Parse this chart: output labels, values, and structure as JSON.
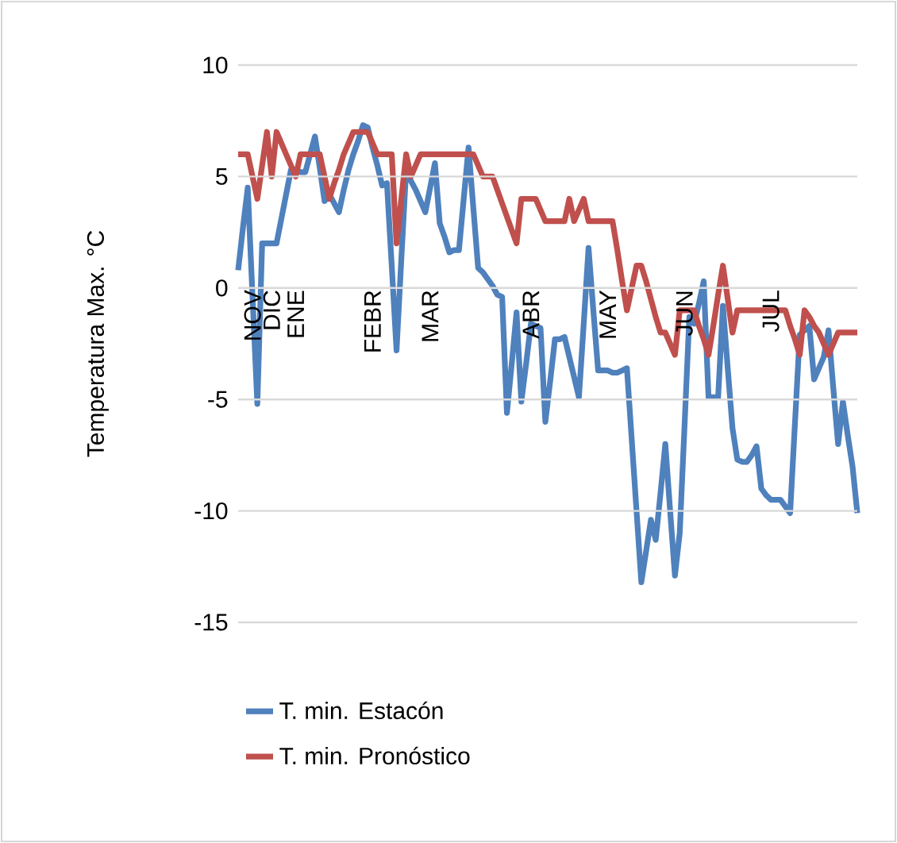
{
  "chart_data": {
    "type": "line",
    "ylabel": "Temperatura Max. °C",
    "categories": [
      null,
      null,
      null,
      "NOV",
      null,
      null,
      null,
      "DIC",
      null,
      null,
      null,
      null,
      "ENE",
      null,
      null,
      null,
      null,
      null,
      null,
      null,
      null,
      null,
      null,
      null,
      null,
      null,
      null,
      null,
      "FEBR",
      null,
      null,
      null,
      null,
      null,
      null,
      null,
      null,
      null,
      null,
      null,
      "MAR",
      null,
      null,
      null,
      null,
      null,
      null,
      null,
      null,
      null,
      null,
      null,
      null,
      null,
      null,
      null,
      null,
      null,
      null,
      null,
      null,
      "ABR",
      null,
      null,
      null,
      null,
      null,
      null,
      null,
      null,
      null,
      null,
      null,
      null,
      null,
      null,
      null,
      "MAY",
      null,
      null,
      null,
      null,
      null,
      null,
      null,
      null,
      null,
      null,
      null,
      null,
      null,
      null,
      null,
      "JUN",
      null,
      null,
      null,
      null,
      null,
      null,
      null,
      null,
      null,
      null,
      null,
      null,
      null,
      null,
      null,
      null,
      null,
      "JUL",
      null,
      null,
      null,
      null,
      null,
      null,
      null,
      null,
      null,
      null,
      null,
      null,
      null,
      null,
      null,
      null,
      null,
      null
    ],
    "ylim": [
      -15,
      10
    ],
    "yticks": [
      -15,
      -10,
      -5,
      0,
      5,
      10
    ],
    "grid": "y",
    "legend": "bottom",
    "line_style": "solid",
    "series": [
      {
        "name": "T. min. Estacón",
        "color": "#4f81bd",
        "values": [
          0.8,
          2.7,
          4.5,
          -0.4,
          -5.2,
          2.0,
          2.0,
          2.0,
          2.0,
          3.1,
          4.2,
          5.3,
          5.3,
          5.2,
          5.2,
          6.0,
          6.8,
          5.4,
          3.9,
          4.2,
          3.8,
          3.4,
          4.4,
          5.3,
          6.0,
          6.6,
          7.3,
          7.2,
          6.3,
          5.5,
          4.6,
          4.7,
          1.0,
          -2.8,
          1.3,
          5.3,
          4.8,
          4.4,
          3.9,
          3.4,
          4.5,
          5.6,
          2.9,
          2.3,
          1.6,
          1.7,
          1.7,
          4.0,
          6.3,
          3.6,
          0.9,
          0.7,
          0.4,
          0.1,
          -0.3,
          -0.4,
          -5.6,
          -3.4,
          -1.1,
          -5.1,
          -3.4,
          -1.6,
          -1.7,
          -1.8,
          -6.0,
          -4.2,
          -2.3,
          -2.3,
          -2.2,
          -3.1,
          -4.0,
          -4.9,
          -1.6,
          1.8,
          -1.0,
          -3.7,
          -3.7,
          -3.7,
          -3.8,
          -3.8,
          -3.7,
          -3.6,
          -6.8,
          -10.0,
          -13.2,
          -11.8,
          -10.4,
          -11.3,
          -9.2,
          -7.0,
          -10.0,
          -12.9,
          -11.0,
          -6.2,
          -1.3,
          -1.6,
          -0.7,
          0.3,
          -4.9,
          -4.9,
          -4.9,
          -0.8,
          -3.6,
          -6.3,
          -7.7,
          -7.8,
          -7.8,
          -7.5,
          -7.1,
          -9.0,
          -9.3,
          -9.5,
          -9.5,
          -9.5,
          -9.8,
          -10.1,
          -6.1,
          -2.1,
          -1.9,
          -1.7,
          -4.1,
          -3.6,
          -3.1,
          -1.9,
          -4.5,
          -7.0,
          -5.1,
          -6.6,
          -8.0,
          -10.1
        ]
      },
      {
        "name": "T. min. Pronóstico",
        "color": "#c0504d",
        "values": [
          6,
          6,
          6,
          5,
          4,
          5.5,
          7,
          5,
          7,
          6.5,
          6,
          5.5,
          5,
          6,
          6,
          6,
          6,
          6,
          5,
          4,
          4.7,
          5.3,
          6,
          6.5,
          7,
          7,
          7,
          7,
          6.5,
          6,
          6,
          6,
          6,
          2,
          4,
          6,
          5,
          5.5,
          6,
          6,
          6,
          6,
          6,
          6,
          6,
          6,
          6,
          6,
          6,
          6,
          5.5,
          5,
          5,
          5,
          4.4,
          3.8,
          3.2,
          2.6,
          2,
          4,
          4,
          4,
          4,
          3.5,
          3,
          3,
          3,
          3,
          3,
          4,
          3,
          3.5,
          4,
          3,
          3,
          3,
          3,
          3,
          3,
          1.7,
          0.3,
          -1,
          0,
          1,
          1,
          0.3,
          -0.5,
          -1.3,
          -2,
          -2,
          -2.5,
          -3,
          -1,
          -1,
          -1,
          -1,
          -1.7,
          -2.3,
          -3,
          -1.7,
          -0.3,
          1,
          -0.5,
          -2,
          -1,
          -1,
          -1,
          -1,
          -1,
          -1,
          -1,
          -1,
          -1,
          -1,
          -1,
          -1.7,
          -2.3,
          -3,
          -1,
          -1.3,
          -1.7,
          -2,
          -2.5,
          -3,
          -2.5,
          -2,
          -2,
          -2,
          -2,
          -2
        ]
      }
    ]
  }
}
